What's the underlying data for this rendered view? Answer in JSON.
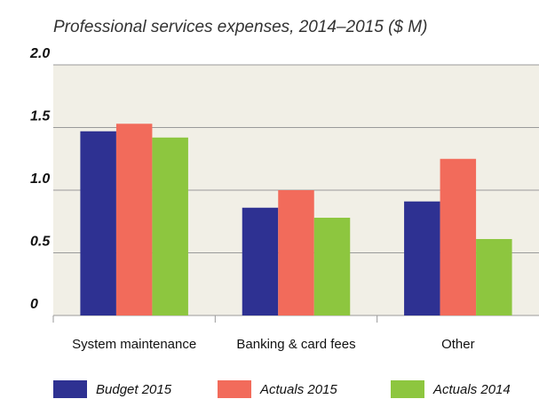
{
  "chart_data": {
    "type": "bar",
    "title": "Professional services expenses, 2014–2015 ($ M)",
    "categories": [
      "System maintenance",
      "Banking & card fees",
      "Other"
    ],
    "series": [
      {
        "name": "Budget 2015",
        "color": "#2e3192",
        "values": [
          1.47,
          0.86,
          0.91
        ]
      },
      {
        "name": "Actuals 2015",
        "color": "#f26b5b",
        "values": [
          1.53,
          1.0,
          1.25
        ]
      },
      {
        "name": "Actuals 2014",
        "color": "#8dc63f",
        "values": [
          1.42,
          0.78,
          0.61
        ]
      }
    ],
    "ylim": [
      0,
      2
    ],
    "yticks": [
      0,
      0.5,
      {
        "value": 1,
        "label": "1.0"
      },
      1.5,
      {
        "value": 2,
        "label": "2.0"
      }
    ],
    "grid": true,
    "legend": "bottom"
  }
}
